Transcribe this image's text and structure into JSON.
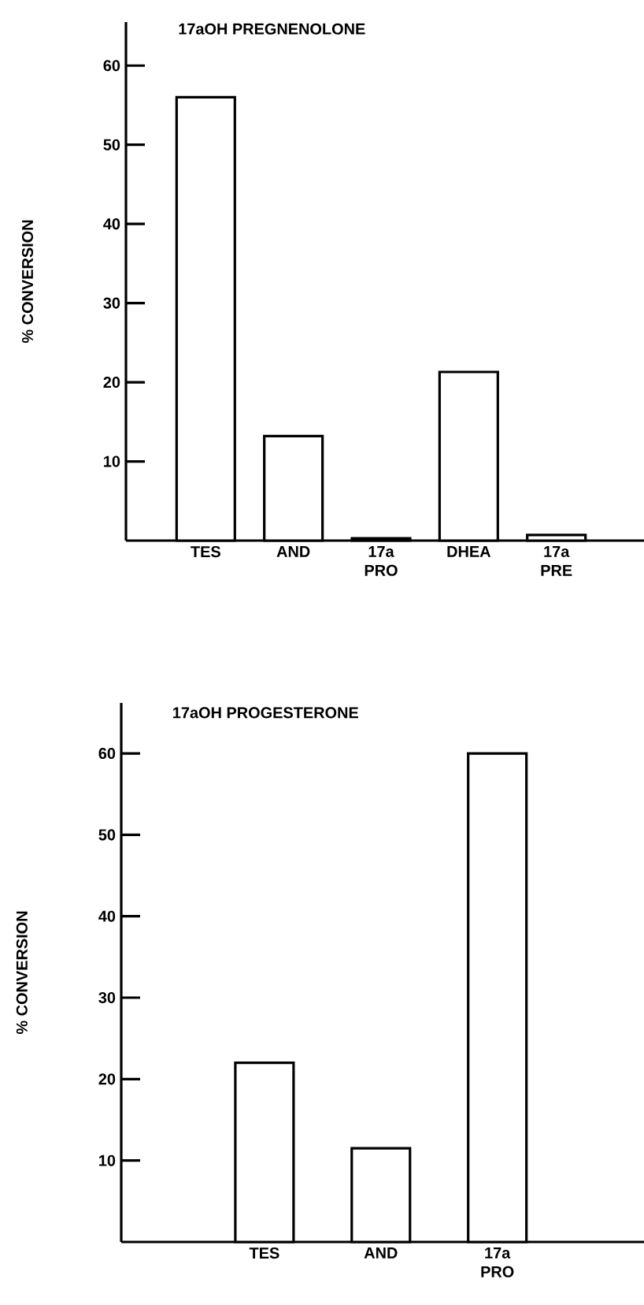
{
  "chart_data": [
    {
      "type": "bar",
      "title": "17aOH  PREGNENOLONE",
      "ylabel": "% CONVERSION",
      "categories": [
        "TES",
        "AND",
        "17a PRO",
        "DHEA",
        "17a PRE"
      ],
      "values": [
        56,
        13.2,
        0.3,
        21.3,
        0.7
      ],
      "color": "#000000",
      "ylim": [
        0,
        65.5
      ],
      "yticks": [
        10,
        20,
        30,
        40,
        50,
        60
      ],
      "grid": false
    },
    {
      "type": "bar",
      "title": "17aOH  PROGESTERONE",
      "ylabel": "% CONVERSION",
      "categories": [
        "TES",
        "AND",
        "17a PRO"
      ],
      "values": [
        22,
        11.5,
        60
      ],
      "color": "#000000",
      "ylim": [
        0,
        66.2
      ],
      "yticks": [
        10,
        20,
        30,
        40,
        50,
        60
      ],
      "grid": false
    }
  ]
}
